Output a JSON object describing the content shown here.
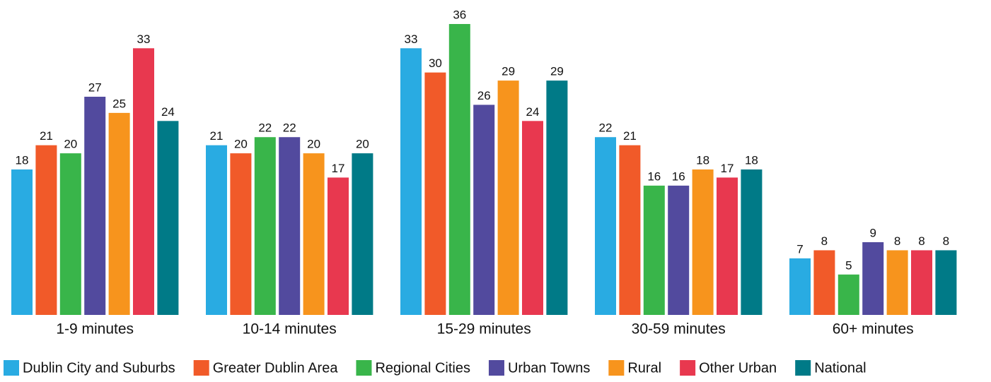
{
  "chart_data": {
    "type": "bar",
    "categories": [
      "1-9 minutes",
      "10-14 minutes",
      "15-29 minutes",
      "30-59 minutes",
      "60+ minutes"
    ],
    "series": [
      {
        "name": "Dublin City and Suburbs",
        "color": "#29abe2",
        "values": [
          18,
          21,
          33,
          22,
          7
        ]
      },
      {
        "name": "Greater Dublin Area",
        "color": "#f15a29",
        "values": [
          21,
          20,
          30,
          21,
          8
        ]
      },
      {
        "name": "Regional Cities",
        "color": "#39b54a",
        "values": [
          20,
          22,
          36,
          16,
          5
        ]
      },
      {
        "name": "Urban Towns",
        "color": "#524a9e",
        "values": [
          27,
          22,
          26,
          16,
          9
        ]
      },
      {
        "name": "Rural",
        "color": "#f7941d",
        "values": [
          25,
          20,
          29,
          18,
          8
        ]
      },
      {
        "name": "Other Urban",
        "color": "#e8384f",
        "values": [
          33,
          17,
          24,
          17,
          8
        ]
      },
      {
        "name": "National",
        "color": "#007a87",
        "values": [
          24,
          20,
          29,
          18,
          8
        ]
      }
    ]
  }
}
